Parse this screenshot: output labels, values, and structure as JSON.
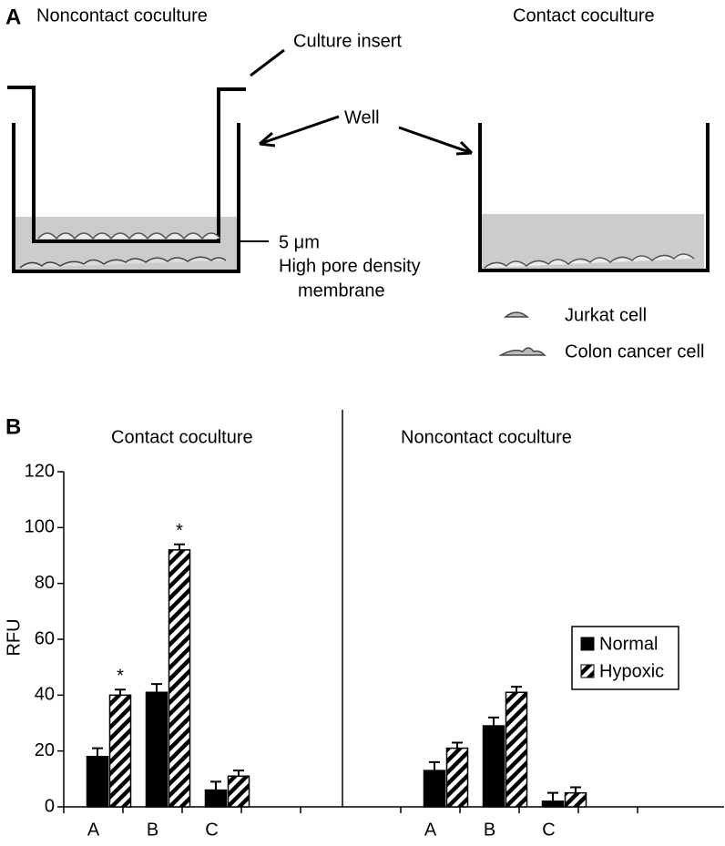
{
  "panel_a": {
    "label": "A",
    "left_title": "Noncontact coculture",
    "right_title": "Contact coculture",
    "insert_label": "Culture insert",
    "well_label": "Well",
    "pore_size": "5 μm",
    "membrane_lines": [
      "High pore density",
      "membrane"
    ],
    "legend": [
      "Jurkat cell",
      "Colon cancer cell"
    ]
  },
  "chart_data": {
    "type": "bar",
    "panel_label": "B",
    "y_label": "RFU",
    "group_titles": [
      "Contact coculture",
      "Noncontact coculture"
    ],
    "categories": [
      "A",
      "B",
      "C",
      "A",
      "B",
      "C"
    ],
    "series": [
      {
        "name": "Normal",
        "color": "#000000",
        "values": [
          18,
          41,
          6,
          13,
          29,
          2
        ],
        "errors": [
          3,
          3,
          3,
          3,
          3,
          3
        ]
      },
      {
        "name": "Hypoxic",
        "color": "hatched",
        "values": [
          40,
          92,
          11,
          21,
          41,
          5
        ],
        "errors": [
          2,
          2,
          2,
          2,
          2,
          2
        ],
        "markers": [
          "*",
          "*",
          null,
          null,
          null,
          null
        ]
      }
    ],
    "ylim": [
      0,
      120
    ],
    "yticks": [
      0,
      20,
      40,
      60,
      80,
      100,
      120
    ],
    "grid": false,
    "legend_position": "right"
  }
}
